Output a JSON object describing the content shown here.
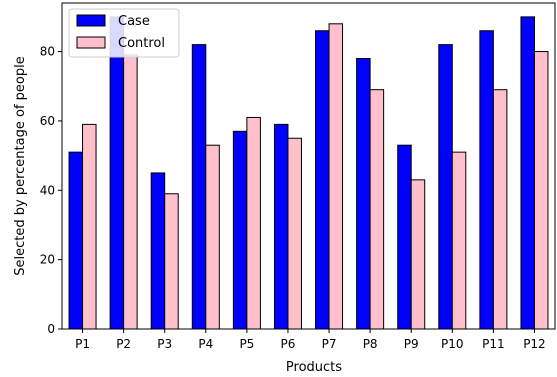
{
  "chart_data": {
    "type": "bar",
    "title": "",
    "xlabel": "Products",
    "ylabel": "Selected by percentage of people",
    "categories": [
      "P1",
      "P2",
      "P3",
      "P4",
      "P5",
      "P6",
      "P7",
      "P8",
      "P9",
      "P10",
      "P11",
      "P12"
    ],
    "series": [
      {
        "name": "Case",
        "color": "#0000ff",
        "values": [
          51,
          90,
          45,
          82,
          57,
          59,
          86,
          78,
          53,
          82,
          86,
          90
        ]
      },
      {
        "name": "Control",
        "color": "#ffc0cb",
        "values": [
          59,
          79,
          39,
          53,
          61,
          55,
          88,
          69,
          43,
          51,
          69,
          80
        ]
      }
    ],
    "ylim": [
      0,
      94
    ],
    "yticks": [
      0,
      20,
      40,
      60,
      80
    ],
    "grid": false,
    "legend_position": "top-left"
  }
}
